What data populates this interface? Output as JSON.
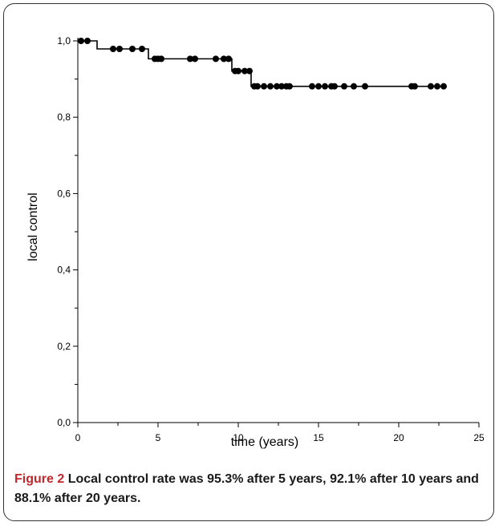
{
  "chart_data": {
    "type": "line",
    "subtype": "kaplan-meier",
    "xlabel": "time (years)",
    "ylabel": "local control",
    "xlim": [
      0,
      25
    ],
    "ylim": [
      0,
      1.0
    ],
    "xticks": [
      0,
      5,
      10,
      15,
      20,
      25
    ],
    "xtick_labels": [
      "0",
      "5",
      "10",
      "15",
      "20",
      "25"
    ],
    "yticks": [
      0,
      0.2,
      0.4,
      0.6,
      0.8,
      1.0
    ],
    "ytick_labels": [
      "0,0",
      "0,2",
      "0,4",
      "0,6",
      "0,8",
      "1,0"
    ],
    "grid": false,
    "legend": "none",
    "line_color": "#000000",
    "steps": [
      {
        "x": 0,
        "y": 1.0
      },
      {
        "x": 1.2,
        "y": 0.979
      },
      {
        "x": 4.4,
        "y": 0.953
      },
      {
        "x": 9.6,
        "y": 0.921
      },
      {
        "x": 10.8,
        "y": 0.881
      },
      {
        "x": 23.0,
        "y": 0.881
      }
    ],
    "censored": [
      {
        "x": 0.2,
        "y": 1.0
      },
      {
        "x": 0.6,
        "y": 1.0
      },
      {
        "x": 2.2,
        "y": 0.979
      },
      {
        "x": 2.6,
        "y": 0.979
      },
      {
        "x": 3.4,
        "y": 0.979
      },
      {
        "x": 4.0,
        "y": 0.979
      },
      {
        "x": 4.8,
        "y": 0.953
      },
      {
        "x": 5.0,
        "y": 0.953
      },
      {
        "x": 5.2,
        "y": 0.953
      },
      {
        "x": 7.0,
        "y": 0.953
      },
      {
        "x": 7.3,
        "y": 0.953
      },
      {
        "x": 8.6,
        "y": 0.953
      },
      {
        "x": 9.1,
        "y": 0.953
      },
      {
        "x": 9.4,
        "y": 0.953
      },
      {
        "x": 9.8,
        "y": 0.921
      },
      {
        "x": 10.0,
        "y": 0.921
      },
      {
        "x": 10.4,
        "y": 0.921
      },
      {
        "x": 10.7,
        "y": 0.921
      },
      {
        "x": 11.0,
        "y": 0.881
      },
      {
        "x": 11.2,
        "y": 0.881
      },
      {
        "x": 11.6,
        "y": 0.881
      },
      {
        "x": 12.0,
        "y": 0.881
      },
      {
        "x": 12.4,
        "y": 0.881
      },
      {
        "x": 12.7,
        "y": 0.881
      },
      {
        "x": 13.0,
        "y": 0.881
      },
      {
        "x": 13.2,
        "y": 0.881
      },
      {
        "x": 14.6,
        "y": 0.881
      },
      {
        "x": 15.0,
        "y": 0.881
      },
      {
        "x": 15.4,
        "y": 0.881
      },
      {
        "x": 15.8,
        "y": 0.881
      },
      {
        "x": 16.0,
        "y": 0.881
      },
      {
        "x": 16.6,
        "y": 0.881
      },
      {
        "x": 17.2,
        "y": 0.881
      },
      {
        "x": 17.9,
        "y": 0.881
      },
      {
        "x": 20.8,
        "y": 0.881
      },
      {
        "x": 21.0,
        "y": 0.881
      },
      {
        "x": 22.0,
        "y": 0.881
      },
      {
        "x": 22.4,
        "y": 0.881
      },
      {
        "x": 22.8,
        "y": 0.881
      }
    ]
  },
  "caption": {
    "label": "Figure 2",
    "text": "Local control rate was 95.3% after 5 years, 92.1% after 10 years and 88.1% after 20 years."
  }
}
